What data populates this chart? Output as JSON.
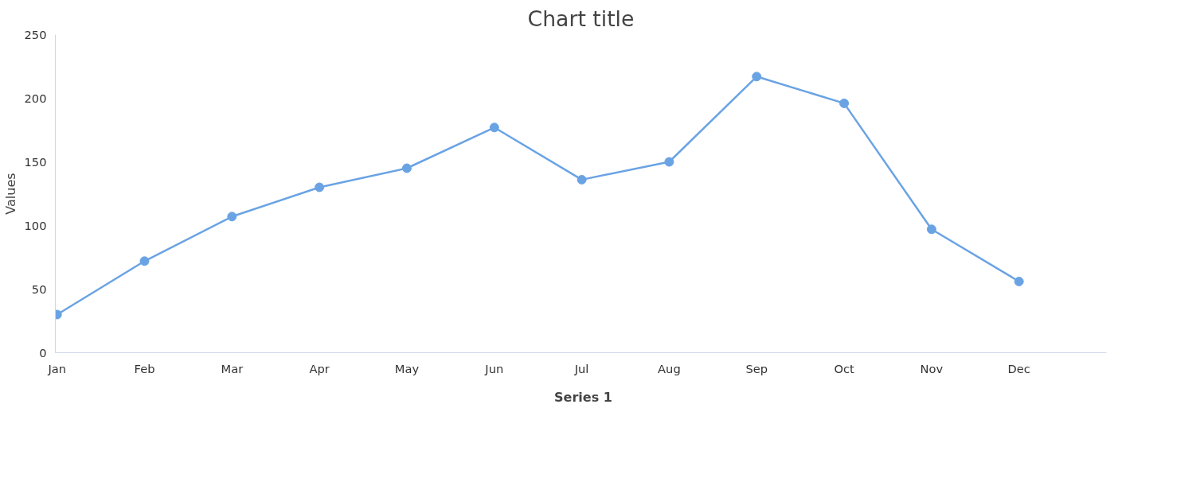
{
  "chart_data": {
    "type": "line",
    "title": "Chart title",
    "ylabel": "Values",
    "categories": [
      "Jan",
      "Feb",
      "Mar",
      "Apr",
      "May",
      "Jun",
      "Jul",
      "Aug",
      "Sep",
      "Oct",
      "Nov",
      "Dec"
    ],
    "series": [
      {
        "name": "Series 1",
        "color": "#6aa3e4",
        "values": [
          30,
          72,
          107,
          130,
          145,
          177,
          136,
          150,
          217,
          196,
          97,
          56
        ]
      }
    ],
    "ylim": [
      0,
      250
    ],
    "yticks": [
      0,
      50,
      100,
      150,
      200,
      250
    ],
    "grid": false,
    "legend": "bottom",
    "marker": "circle",
    "line_style": "solid"
  }
}
